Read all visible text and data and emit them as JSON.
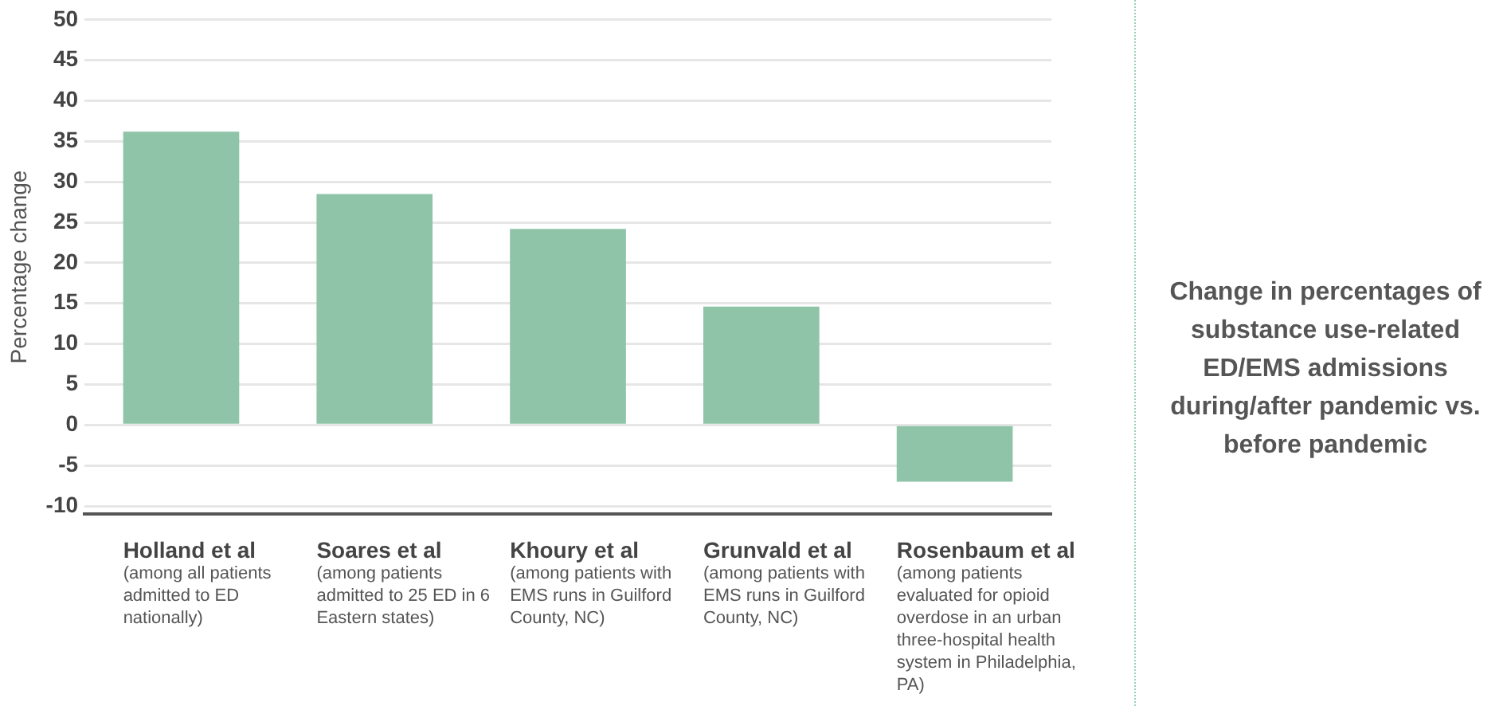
{
  "chart_data": {
    "type": "bar",
    "title": "Change in percentages of substance use-related ED/EMS admissions during/after pandemic vs. before pandemic",
    "ylabel": "Percentage change",
    "categories": [
      "Holland et al (among all patients admitted to ED nationally)",
      "Soares et al (among patients admitted to 25 ED in 6 Eastern states)",
      "Khoury et al (among patients with EMS runs in Guilford County, NC)",
      "Grunvald et al (among patients with EMS runs in Guilford County, NC)",
      "Rosenbaum et al (among patients evaluated for opioid overdose in an urban three-hospital health system in Philadelphia, PA)"
    ],
    "values": [
      36.2,
      28.5,
      24.2,
      14.6,
      -7.0
    ],
    "color": "#8fc4a8",
    "ylim": [
      -11,
      50
    ],
    "yticks": [
      -10,
      -5,
      0,
      5,
      10,
      15,
      20,
      25,
      30,
      35,
      40,
      45,
      50
    ],
    "grid": "y",
    "legend": false
  }
}
